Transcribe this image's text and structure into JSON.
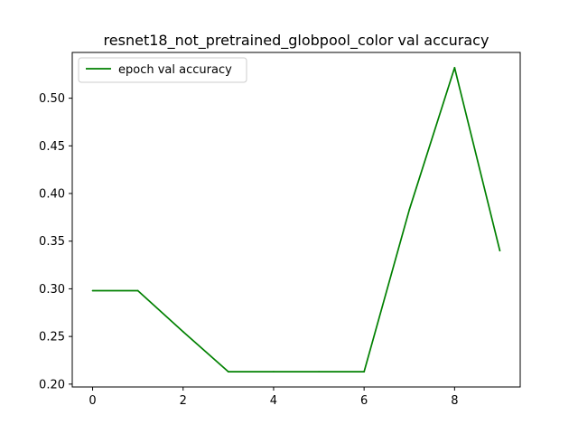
{
  "chart_data": {
    "type": "line",
    "title": "resnet18_not_pretrained_globpool_color val accuracy",
    "xlabel": "",
    "ylabel": "",
    "x": [
      0,
      1,
      2,
      3,
      4,
      5,
      6,
      7,
      8,
      9
    ],
    "series": [
      {
        "name": "epoch val accuracy",
        "color": "#008000",
        "values": [
          0.298,
          0.298,
          0.255,
          0.213,
          0.213,
          0.213,
          0.213,
          0.383,
          0.532,
          0.34
        ]
      }
    ],
    "xlim": [
      -0.45,
      9.45
    ],
    "ylim": [
      0.197,
      0.548
    ],
    "xticks": [
      0,
      2,
      4,
      6,
      8
    ],
    "xtick_labels": [
      "0",
      "2",
      "4",
      "6",
      "8"
    ],
    "yticks": [
      0.2,
      0.25,
      0.3,
      0.35,
      0.4,
      0.45,
      0.5
    ],
    "ytick_labels": [
      "0.20",
      "0.25",
      "0.30",
      "0.35",
      "0.40",
      "0.45",
      "0.50"
    ],
    "grid": false,
    "legend_position": "upper-left"
  }
}
